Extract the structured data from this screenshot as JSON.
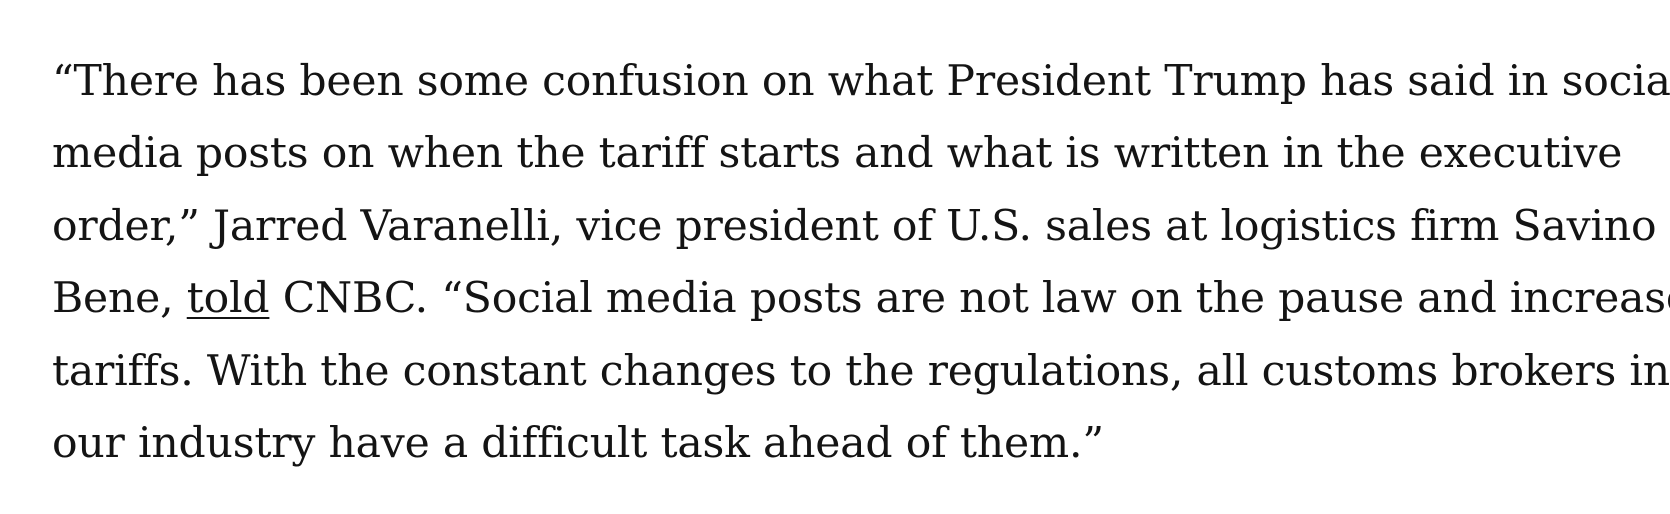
{
  "article": {
    "paragraph": {
      "line1": "“There has been some confusion on what President Trump has said in social",
      "line2": "media posts on when the tariff starts and what is written in the executive",
      "line3": "order,” Jarred Varanelli, vice president of U.S. sales at logistics firm Savino Del",
      "line4_before_link": "Bene, ",
      "link_text": "told",
      "line4_after_link": " CNBC. “Social media posts are not law on the pause and increase in",
      "line5": "tariffs. With the constant changes to the regulations, all customs brokers in",
      "line6": "our industry have a difficult task ahead of them.”"
    }
  }
}
